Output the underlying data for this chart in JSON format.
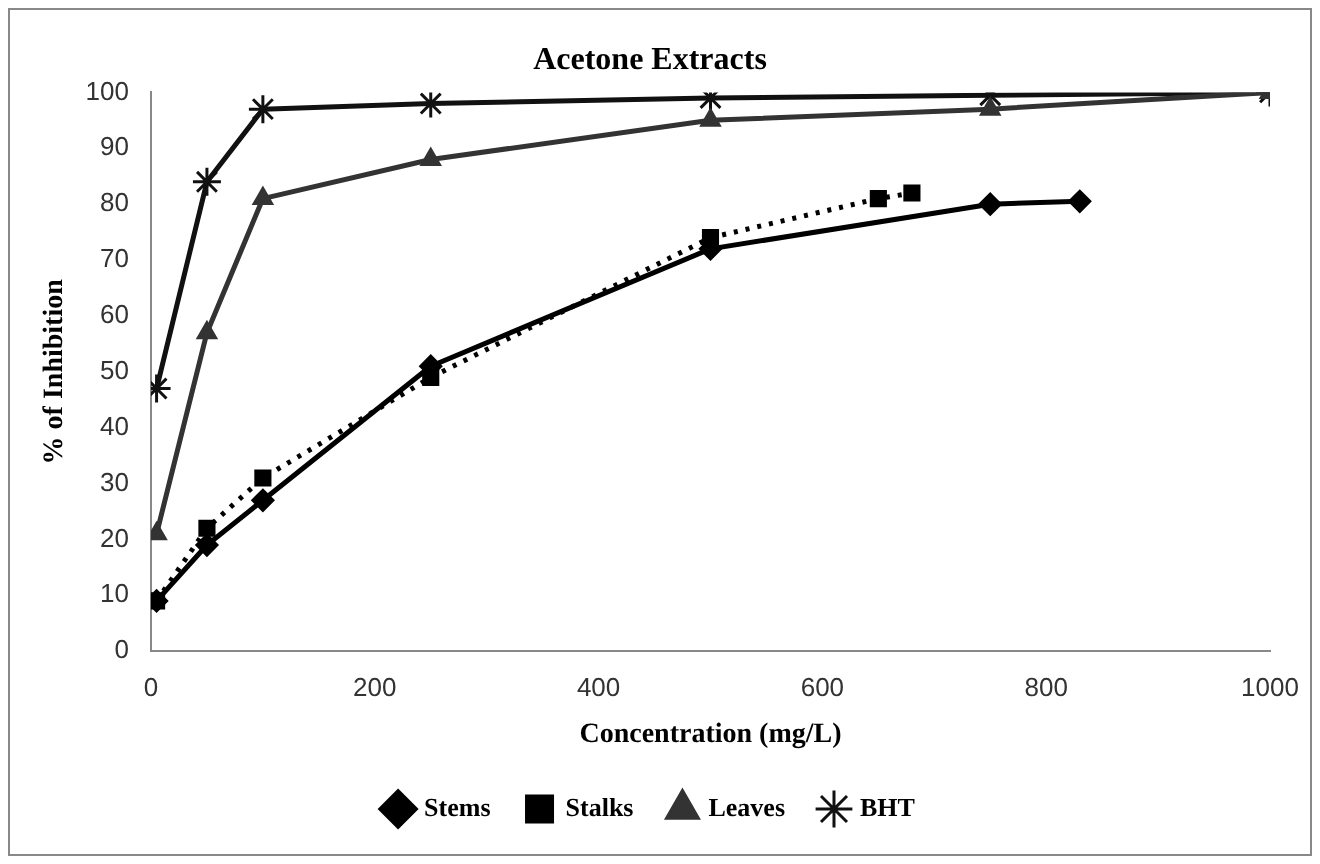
{
  "chart_data": {
    "type": "line",
    "title": "Acetone Extracts",
    "xlabel": "Concentration (mg/L)",
    "ylabel": "% of Inhibition",
    "xlim": [
      0,
      1000
    ],
    "xticks": [
      0,
      200,
      400,
      600,
      800,
      1000
    ],
    "ylim": [
      0,
      100
    ],
    "yticks": [
      0,
      10,
      20,
      30,
      40,
      50,
      60,
      70,
      80,
      90,
      100
    ],
    "grid": false,
    "legend": "bottom",
    "series": [
      {
        "name": "Stems",
        "color": "#000000",
        "marker": "diamond",
        "line_style": "solid",
        "x": [
          5,
          50,
          100,
          250,
          500,
          750,
          830
        ],
        "values": [
          9,
          19,
          27,
          51,
          72,
          80,
          80.5
        ]
      },
      {
        "name": "Stalks",
        "color": "#000000",
        "marker": "square",
        "line_style": "dotted",
        "x": [
          5,
          50,
          100,
          250,
          500,
          650,
          680
        ],
        "values": [
          9,
          22,
          31,
          49,
          74,
          81,
          82
        ]
      },
      {
        "name": "Leaves",
        "color": "#333333",
        "marker": "triangle",
        "line_style": "solid",
        "x": [
          5,
          50,
          100,
          250,
          500,
          750,
          1000
        ],
        "values": [
          21,
          57,
          81,
          88,
          95,
          97,
          100
        ]
      },
      {
        "name": "BHT",
        "color": "#111111",
        "marker": "cross",
        "line_style": "solid",
        "x": [
          5,
          50,
          100,
          250,
          500,
          750,
          1000
        ],
        "values": [
          47,
          84,
          97,
          98,
          99,
          99.5,
          100
        ]
      }
    ]
  }
}
